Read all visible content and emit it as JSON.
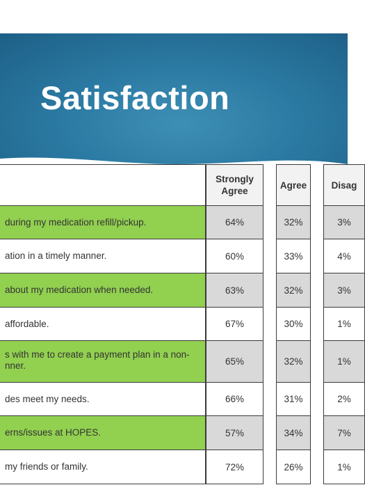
{
  "slide": {
    "title": "Satisfaction"
  },
  "table": {
    "columns": [
      "Strongly Agree",
      "Agree",
      "Disag"
    ],
    "rows": [
      {
        "statement": "during my medication refill/pickup.",
        "strongly_agree": "64%",
        "agree": "32%",
        "disagree": "3%"
      },
      {
        "statement": "ation in a timely manner.",
        "strongly_agree": "60%",
        "agree": "33%",
        "disagree": "4%"
      },
      {
        "statement": "about my medication when needed.",
        "strongly_agree": "63%",
        "agree": "32%",
        "disagree": "3%"
      },
      {
        "statement": "affordable.",
        "strongly_agree": "67%",
        "agree": "30%",
        "disagree": "1%"
      },
      {
        "statement": "s with me to create a payment plan in a non-\nnner.",
        "strongly_agree": "65%",
        "agree": "32%",
        "disagree": "1%"
      },
      {
        "statement": "des meet my needs.",
        "strongly_agree": "66%",
        "agree": "31%",
        "disagree": "2%"
      },
      {
        "statement": "erns/issues at HOPES.",
        "strongly_agree": "57%",
        "agree": "34%",
        "disagree": "7%"
      },
      {
        "statement": "my friends or family.",
        "strongly_agree": "72%",
        "agree": "26%",
        "disagree": "1%"
      }
    ]
  },
  "colors": {
    "banner_blue": "#2b7aa3",
    "highlight_green": "#92d050",
    "shaded_gray": "#d9d9d9",
    "white": "#ffffff",
    "border": "#3a3a3a"
  }
}
